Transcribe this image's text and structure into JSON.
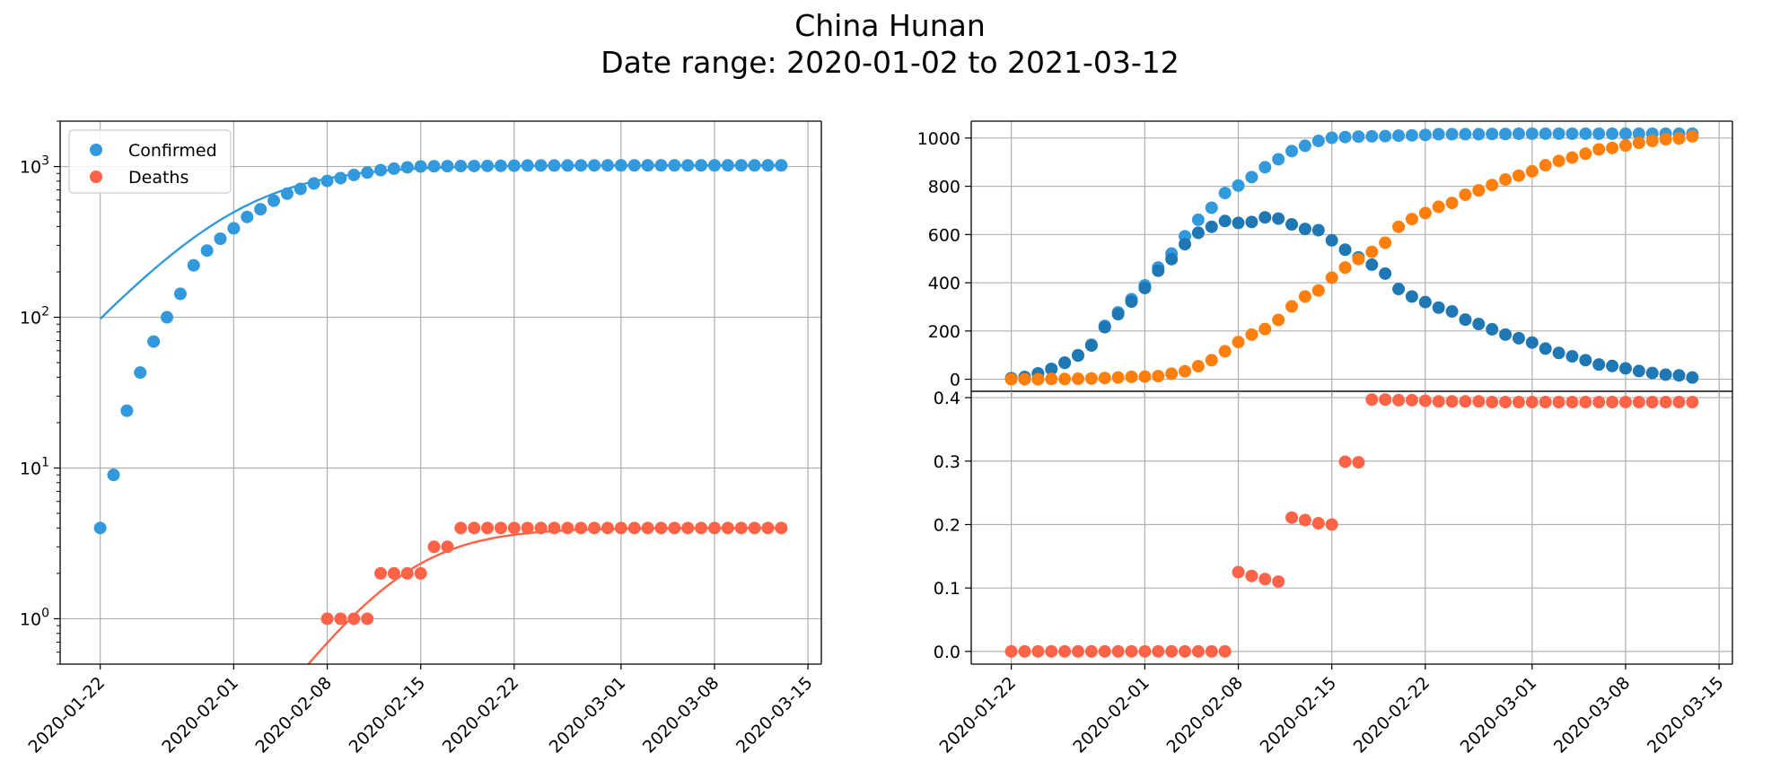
{
  "figure": {
    "title_line1": "China Hunan",
    "title_line2": "Date range: 2020-01-02 to 2021-03-12"
  },
  "colors": {
    "confirmed": "#3399dd",
    "deaths": "#ff6347",
    "active": "#1f77b4",
    "recovered": "#ff7f0e",
    "grid": "#b0b0b0"
  },
  "chart_data": [
    {
      "type": "scatter",
      "panel": "left",
      "yscale": "log",
      "xlim": [
        "2020-01-19",
        "2020-03-16"
      ],
      "ylim": [
        0.5,
        2000
      ],
      "xticks": [
        "2020-01-22",
        "2020-02-01",
        "2020-02-08",
        "2020-02-15",
        "2020-02-22",
        "2020-03-01",
        "2020-03-08",
        "2020-03-15"
      ],
      "yticks": [
        {
          "v": 1,
          "base": "10",
          "exp": "0"
        },
        {
          "v": 10,
          "base": "10",
          "exp": "1"
        },
        {
          "v": 100,
          "base": "10",
          "exp": "2"
        },
        {
          "v": 1000,
          "base": "10",
          "exp": "3"
        }
      ],
      "grid": true,
      "legend_position": "top-left",
      "x_start": "2020-01-22",
      "series": [
        {
          "name": "Confirmed",
          "color": "#3399dd",
          "fit": "line",
          "values": [
            4,
            9,
            24,
            43,
            69,
            100,
            143,
            221,
            277,
            332,
            389,
            463,
            521,
            593,
            661,
            711,
            772,
            803,
            838,
            879,
            912,
            946,
            968,
            988,
            1001,
            1004,
            1006,
            1007,
            1008,
            1010,
            1011,
            1013,
            1016,
            1016,
            1016,
            1016,
            1017,
            1017,
            1018,
            1018,
            1018,
            1018,
            1018,
            1018,
            1018,
            1018,
            1018,
            1018,
            1018,
            1018,
            1018,
            1018
          ]
        },
        {
          "name": "Deaths",
          "color": "#ff6347",
          "fit": "line",
          "values": [
            0,
            0,
            0,
            0,
            0,
            0,
            0,
            0,
            0,
            0,
            0,
            0,
            0,
            0,
            0,
            0,
            0,
            1,
            1,
            1,
            1,
            2,
            2,
            2,
            2,
            3,
            3,
            4,
            4,
            4,
            4,
            4,
            4,
            4,
            4,
            4,
            4,
            4,
            4,
            4,
            4,
            4,
            4,
            4,
            4,
            4,
            4,
            4,
            4,
            4,
            4,
            4
          ]
        }
      ]
    },
    {
      "type": "scatter",
      "panel": "top-right",
      "xlim": [
        "2020-01-19",
        "2020-03-16"
      ],
      "ylim": [
        -50,
        1070
      ],
      "yticks": [
        0,
        200,
        400,
        600,
        800,
        1000
      ],
      "grid": true,
      "x_start": "2020-01-22",
      "series": [
        {
          "color": "#3399dd",
          "values": [
            4,
            9,
            24,
            43,
            69,
            100,
            143,
            221,
            277,
            332,
            389,
            463,
            521,
            593,
            661,
            711,
            772,
            803,
            838,
            879,
            912,
            946,
            968,
            988,
            1001,
            1004,
            1006,
            1007,
            1008,
            1010,
            1011,
            1013,
            1016,
            1016,
            1016,
            1016,
            1017,
            1017,
            1018,
            1018,
            1018,
            1018,
            1018,
            1018,
            1018,
            1018,
            1018,
            1018,
            1018,
            1018,
            1018,
            1018
          ]
        },
        {
          "color": "#1f77b4",
          "values": [
            4,
            9,
            24,
            42,
            68,
            98,
            140,
            216,
            270,
            322,
            378,
            450,
            498,
            560,
            607,
            632,
            656,
            648,
            652,
            671,
            666,
            642,
            623,
            618,
            576,
            537,
            505,
            475,
            438,
            374,
            343,
            320,
            297,
            281,
            247,
            229,
            207,
            185,
            170,
            152,
            127,
            109,
            95,
            79,
            61,
            55,
            45,
            34,
            26,
            19,
            16,
            7
          ]
        },
        {
          "color": "#ff7f0e",
          "values": [
            0,
            0,
            0,
            1,
            1,
            2,
            3,
            5,
            7,
            10,
            11,
            13,
            23,
            33,
            54,
            79,
            116,
            154,
            185,
            208,
            246,
            302,
            343,
            368,
            421,
            463,
            498,
            528,
            566,
            632,
            664,
            689,
            715,
            731,
            765,
            783,
            805,
            828,
            844,
            862,
            887,
            905,
            919,
            935,
            953,
            959,
            969,
            980,
            988,
            995,
            998,
            1007
          ]
        }
      ]
    },
    {
      "type": "scatter",
      "panel": "bottom-right",
      "xlim": [
        "2020-01-19",
        "2020-03-16"
      ],
      "ylim": [
        -0.02,
        0.41
      ],
      "yticks": [
        "0.0",
        "0.1",
        "0.2",
        "0.3",
        "0.4"
      ],
      "xticks": [
        "2020-01-22",
        "2020-02-01",
        "2020-02-08",
        "2020-02-15",
        "2020-02-22",
        "2020-03-01",
        "2020-03-08",
        "2020-03-15"
      ],
      "grid": true,
      "x_start": "2020-01-22",
      "series": [
        {
          "color": "#ff6347",
          "values": [
            0,
            0,
            0,
            0,
            0,
            0,
            0,
            0,
            0,
            0,
            0,
            0,
            0,
            0,
            0,
            0,
            0,
            0.125,
            0.119,
            0.114,
            0.11,
            0.211,
            0.207,
            0.202,
            0.2,
            0.299,
            0.298,
            0.397,
            0.397,
            0.396,
            0.396,
            0.395,
            0.394,
            0.394,
            0.394,
            0.394,
            0.393,
            0.393,
            0.393,
            0.393,
            0.393,
            0.393,
            0.393,
            0.393,
            0.393,
            0.393,
            0.393,
            0.393,
            0.393,
            0.393,
            0.393,
            0.393
          ]
        }
      ]
    }
  ]
}
